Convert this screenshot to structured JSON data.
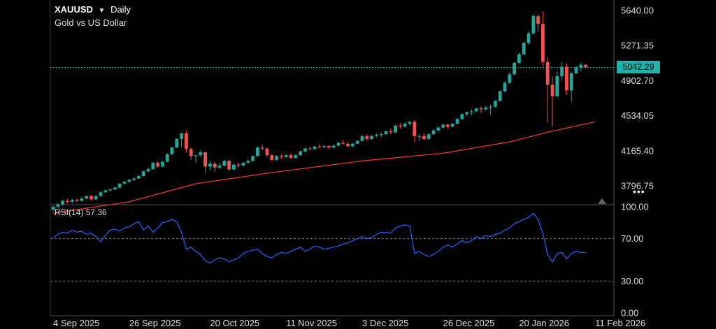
{
  "header": {
    "symbol": "XAUUSD",
    "interval": "Daily",
    "description": "Gold vs US Dollar"
  },
  "current_price_label": "5042.29",
  "rsi_label": "RSI(14)",
  "rsi_value": "57.36",
  "colors": {
    "background": "#000000",
    "up": "#26a69a",
    "down": "#ef5350",
    "ma_line": "#e53935",
    "rsi_line": "#2962ff",
    "price_line": "#20b2aa"
  },
  "chart_data": [
    {
      "type": "candlestick",
      "title": "XAUUSD",
      "subtitle": "Gold vs US Dollar",
      "ylim": [
        3600,
        5750
      ],
      "y_ticks": [
        "5640.00",
        "5271.35",
        "4902.70",
        "4534.05",
        "4165.40",
        "3796.75"
      ],
      "x_ticks": [
        "4 Sep 2025",
        "26 Sep 2025",
        "20 Oct 2025",
        "11 Nov 2025",
        "3 Dec 2025",
        "26 Dec 2025",
        "20 Jan 2026",
        "11 Feb 2026"
      ],
      "x_tick_index": [
        0,
        16,
        33,
        49,
        65,
        82,
        98,
        114
      ],
      "last_price": 5042.29,
      "candles": [
        [
          3545,
          3590,
          3530,
          3580
        ],
        [
          3580,
          3615,
          3565,
          3605
        ],
        [
          3605,
          3650,
          3595,
          3640
        ],
        [
          3640,
          3660,
          3615,
          3630
        ],
        [
          3630,
          3660,
          3620,
          3650
        ],
        [
          3650,
          3665,
          3625,
          3640
        ],
        [
          3640,
          3680,
          3630,
          3665
        ],
        [
          3665,
          3700,
          3655,
          3690
        ],
        [
          3690,
          3700,
          3640,
          3655
        ],
        [
          3655,
          3700,
          3650,
          3690
        ],
        [
          3690,
          3740,
          3685,
          3730
        ],
        [
          3730,
          3760,
          3725,
          3750
        ],
        [
          3750,
          3770,
          3740,
          3760
        ],
        [
          3760,
          3790,
          3755,
          3780
        ],
        [
          3780,
          3830,
          3770,
          3820
        ],
        [
          3820,
          3850,
          3810,
          3840
        ],
        [
          3840,
          3870,
          3830,
          3860
        ],
        [
          3860,
          3885,
          3850,
          3875
        ],
        [
          3875,
          3910,
          3870,
          3900
        ],
        [
          3900,
          3960,
          3895,
          3950
        ],
        [
          3950,
          3990,
          3940,
          3975
        ],
        [
          3975,
          4050,
          3965,
          4040
        ],
        [
          4040,
          4055,
          3985,
          4000
        ],
        [
          4000,
          4060,
          3995,
          4050
        ],
        [
          4050,
          4140,
          4045,
          4130
        ],
        [
          4130,
          4210,
          4120,
          4200
        ],
        [
          4200,
          4300,
          4195,
          4290
        ],
        [
          4290,
          4350,
          4200,
          4350
        ],
        [
          4350,
          4380,
          4150,
          4185
        ],
        [
          4185,
          4200,
          4070,
          4110
        ],
        [
          4110,
          4120,
          4040,
          4120
        ],
        [
          4120,
          4170,
          4100,
          4150
        ],
        [
          4150,
          4155,
          3930,
          4000
        ],
        [
          4000,
          4060,
          3960,
          4030
        ],
        [
          4030,
          4050,
          3940,
          3990
        ],
        [
          3990,
          4040,
          3970,
          4010
        ],
        [
          4010,
          4070,
          4000,
          4060
        ],
        [
          4060,
          4070,
          3950,
          3970
        ],
        [
          3970,
          4030,
          3960,
          4020
        ],
        [
          4020,
          4040,
          3990,
          4010
        ],
        [
          4010,
          4050,
          4000,
          4040
        ],
        [
          4040,
          4080,
          4030,
          4060
        ],
        [
          4060,
          4120,
          4050,
          4110
        ],
        [
          4110,
          4210,
          4105,
          4200
        ],
        [
          4200,
          4230,
          4170,
          4190
        ],
        [
          4190,
          4200,
          4100,
          4120
        ],
        [
          4120,
          4130,
          4060,
          4070
        ],
        [
          4070,
          4120,
          4060,
          4110
        ],
        [
          4110,
          4130,
          4080,
          4100
        ],
        [
          4100,
          4130,
          4090,
          4120
        ],
        [
          4120,
          4140,
          4080,
          4090
        ],
        [
          4090,
          4130,
          4085,
          4120
        ],
        [
          4120,
          4170,
          4115,
          4160
        ],
        [
          4160,
          4200,
          4150,
          4190
        ],
        [
          4190,
          4210,
          4170,
          4185
        ],
        [
          4185,
          4220,
          4180,
          4210
        ],
        [
          4210,
          4240,
          4190,
          4205
        ],
        [
          4205,
          4230,
          4195,
          4215
        ],
        [
          4215,
          4225,
          4185,
          4200
        ],
        [
          4200,
          4230,
          4190,
          4220
        ],
        [
          4220,
          4260,
          4210,
          4250
        ],
        [
          4250,
          4280,
          4230,
          4240
        ],
        [
          4240,
          4260,
          4200,
          4215
        ],
        [
          4215,
          4250,
          4205,
          4240
        ],
        [
          4240,
          4280,
          4235,
          4270
        ],
        [
          4270,
          4330,
          4260,
          4320
        ],
        [
          4320,
          4340,
          4270,
          4290
        ],
        [
          4290,
          4330,
          4280,
          4320
        ],
        [
          4320,
          4350,
          4310,
          4330
        ],
        [
          4330,
          4360,
          4310,
          4340
        ],
        [
          4340,
          4380,
          4330,
          4370
        ],
        [
          4370,
          4400,
          4340,
          4360
        ],
        [
          4360,
          4440,
          4350,
          4430
        ],
        [
          4430,
          4460,
          4400,
          4420
        ],
        [
          4420,
          4470,
          4410,
          4450
        ],
        [
          4450,
          4480,
          4430,
          4470
        ],
        [
          4470,
          4490,
          4255,
          4320
        ],
        [
          4320,
          4340,
          4270,
          4320
        ],
        [
          4320,
          4350,
          4280,
          4290
        ],
        [
          4290,
          4350,
          4280,
          4340
        ],
        [
          4340,
          4400,
          4330,
          4380
        ],
        [
          4380,
          4420,
          4360,
          4410
        ],
        [
          4410,
          4450,
          4400,
          4440
        ],
        [
          4440,
          4450,
          4390,
          4420
        ],
        [
          4420,
          4460,
          4410,
          4450
        ],
        [
          4450,
          4510,
          4440,
          4500
        ],
        [
          4500,
          4560,
          4495,
          4550
        ],
        [
          4550,
          4580,
          4530,
          4570
        ],
        [
          4570,
          4600,
          4540,
          4580
        ],
        [
          4580,
          4620,
          4570,
          4610
        ],
        [
          4610,
          4630,
          4560,
          4600
        ],
        [
          4600,
          4640,
          4590,
          4620
        ],
        [
          4620,
          4650,
          4540,
          4630
        ],
        [
          4630,
          4700,
          4620,
          4690
        ],
        [
          4690,
          4800,
          4680,
          4790
        ],
        [
          4790,
          4900,
          4780,
          4880
        ],
        [
          4880,
          4990,
          4870,
          4970
        ],
        [
          4970,
          5100,
          4960,
          5090
        ],
        [
          5090,
          5200,
          5080,
          5180
        ],
        [
          5180,
          5310,
          5170,
          5300
        ],
        [
          5300,
          5420,
          5280,
          5400
        ],
        [
          5400,
          5600,
          5380,
          5580
        ],
        [
          5580,
          5600,
          5420,
          5500
        ],
        [
          5500,
          5630,
          5050,
          5100
        ],
        [
          5100,
          5150,
          4460,
          4860
        ],
        [
          4860,
          4950,
          4420,
          4740
        ],
        [
          4740,
          5000,
          4730,
          4950
        ],
        [
          4950,
          5100,
          4900,
          5050
        ],
        [
          5050,
          5080,
          4750,
          4800
        ],
        [
          4800,
          5000,
          4680,
          4980
        ],
        [
          4980,
          5060,
          4970,
          5040
        ],
        [
          5040,
          5090,
          5000,
          5070
        ],
        [
          5070,
          5075,
          5030,
          5042
        ]
      ],
      "ma_line": [
        [
          0,
          3510
        ],
        [
          16,
          3630
        ],
        [
          30,
          3820
        ],
        [
          45,
          3930
        ],
        [
          65,
          4060
        ],
        [
          82,
          4140
        ],
        [
          96,
          4260
        ],
        [
          104,
          4360
        ],
        [
          114,
          4470
        ]
      ]
    },
    {
      "type": "line",
      "title": "RSI(14)",
      "ylim": [
        0,
        100
      ],
      "y_ticks": [
        "100.00",
        "70.00",
        "30.00",
        "0.00"
      ],
      "guide_levels": [
        70,
        30
      ],
      "last_value": 57.36,
      "values": [
        71,
        74,
        76,
        75,
        78,
        76,
        77,
        74,
        75,
        72,
        67,
        73,
        78,
        79,
        77,
        80,
        81,
        84,
        86,
        78,
        82,
        76,
        80,
        85,
        86,
        88,
        86,
        76,
        60,
        62,
        58,
        55,
        49,
        47,
        50,
        52,
        51,
        48,
        50,
        52,
        56,
        58,
        59,
        60,
        56,
        53,
        52,
        55,
        57,
        56,
        58,
        60,
        62,
        58,
        60,
        63,
        62,
        60,
        61,
        62,
        63,
        65,
        66,
        68,
        70,
        72,
        70,
        71,
        74,
        76,
        76,
        75,
        80,
        82,
        83,
        82,
        56,
        58,
        55,
        53,
        55,
        58,
        62,
        64,
        62,
        65,
        68,
        66,
        68,
        72,
        70,
        73,
        72,
        74,
        75,
        78,
        80,
        84,
        86,
        88,
        90,
        94,
        88,
        75,
        55,
        48,
        56,
        57,
        51,
        56,
        58,
        57,
        57
      ]
    }
  ]
}
